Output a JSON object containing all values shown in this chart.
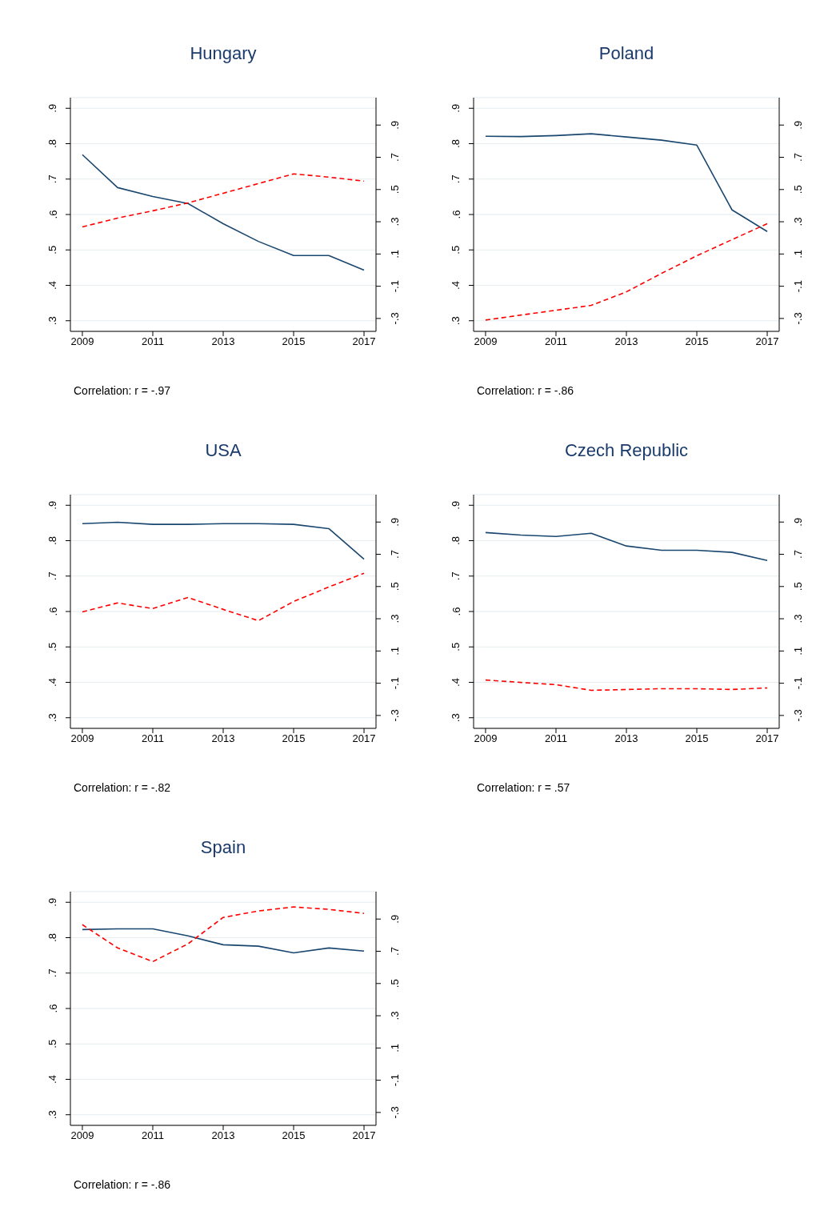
{
  "chart_data": [
    {
      "type": "line",
      "title": "Hungary",
      "x": [
        2009,
        2010,
        2011,
        2012,
        2013,
        2014,
        2015,
        2016,
        2017
      ],
      "xlim": [
        2008.66,
        2017.34
      ],
      "xticks": [
        2009,
        2011,
        2013,
        2015,
        2017
      ],
      "ylim": [
        0.27,
        0.93
      ],
      "yticks": [
        {
          "value": 0.3,
          "label": ".3"
        },
        {
          "value": 0.4,
          "label": ".4"
        },
        {
          "value": 0.5,
          "label": ".5"
        },
        {
          "value": 0.6,
          "label": ".6"
        },
        {
          "value": 0.7,
          "label": ".7"
        },
        {
          "value": 0.8,
          "label": ".8"
        },
        {
          "value": 0.9,
          "label": ".9"
        }
      ],
      "y2lim": [
        -0.38,
        1.07
      ],
      "y2ticks": [
        {
          "value": -0.3,
          "label": "-.3"
        },
        {
          "value": -0.1,
          "label": "-.1"
        },
        {
          "value": 0.1,
          "label": ".1"
        },
        {
          "value": 0.3,
          "label": ".3"
        },
        {
          "value": 0.5,
          "label": ".5"
        },
        {
          "value": 0.7,
          "label": ".7"
        },
        {
          "value": 0.9,
          "label": ".9"
        }
      ],
      "grid": "y",
      "marker": "none",
      "annotations": [
        "Correlation: r = -.97"
      ],
      "series": [
        {
          "color": "#1a476f",
          "line_style": "solid",
          "values": [
            0.769,
            0.676,
            0.651,
            0.631,
            0.574,
            0.524,
            0.484,
            0.484,
            0.443
          ]
        },
        {
          "color": "#ff0000",
          "line_style": "dashed",
          "axis": "y2",
          "values": [
            0.268,
            0.323,
            0.368,
            0.417,
            0.477,
            0.537,
            0.597,
            0.577,
            0.552
          ]
        }
      ]
    },
    {
      "type": "line",
      "title": "Poland",
      "x": [
        2009,
        2010,
        2011,
        2012,
        2013,
        2014,
        2015,
        2016,
        2017
      ],
      "xlim": [
        2008.66,
        2017.34
      ],
      "xticks": [
        2009,
        2011,
        2013,
        2015,
        2017
      ],
      "ylim": [
        0.27,
        0.93
      ],
      "yticks": [
        {
          "value": 0.3,
          "label": ".3"
        },
        {
          "value": 0.4,
          "label": ".4"
        },
        {
          "value": 0.5,
          "label": ".5"
        },
        {
          "value": 0.6,
          "label": ".6"
        },
        {
          "value": 0.7,
          "label": ".7"
        },
        {
          "value": 0.8,
          "label": ".8"
        },
        {
          "value": 0.9,
          "label": ".9"
        }
      ],
      "y2lim": [
        -0.38,
        1.07
      ],
      "y2ticks": [
        {
          "value": -0.3,
          "label": "-.3"
        },
        {
          "value": -0.1,
          "label": "-.1"
        },
        {
          "value": 0.1,
          "label": ".1"
        },
        {
          "value": 0.3,
          "label": ".3"
        },
        {
          "value": 0.5,
          "label": ".5"
        },
        {
          "value": 0.7,
          "label": ".7"
        },
        {
          "value": 0.9,
          "label": ".9"
        }
      ],
      "grid": "y",
      "marker": "none",
      "annotations": [
        "Correlation: r = -.86"
      ],
      "series": [
        {
          "color": "#1a476f",
          "line_style": "solid",
          "values": [
            0.821,
            0.82,
            0.823,
            0.828,
            0.819,
            0.81,
            0.796,
            0.613,
            0.552
          ]
        },
        {
          "color": "#ff0000",
          "line_style": "dashed",
          "axis": "y2",
          "values": [
            -0.31,
            -0.279,
            -0.249,
            -0.219,
            -0.135,
            -0.02,
            0.089,
            0.189,
            0.288
          ]
        }
      ]
    },
    {
      "type": "line",
      "title": "USA",
      "x": [
        2009,
        2010,
        2011,
        2012,
        2013,
        2014,
        2015,
        2016,
        2017
      ],
      "xlim": [
        2008.66,
        2017.34
      ],
      "xticks": [
        2009,
        2011,
        2013,
        2015,
        2017
      ],
      "ylim": [
        0.27,
        0.93
      ],
      "yticks": [
        {
          "value": 0.3,
          "label": ".3"
        },
        {
          "value": 0.4,
          "label": ".4"
        },
        {
          "value": 0.5,
          "label": ".5"
        },
        {
          "value": 0.6,
          "label": ".6"
        },
        {
          "value": 0.7,
          "label": ".7"
        },
        {
          "value": 0.8,
          "label": ".8"
        },
        {
          "value": 0.9,
          "label": ".9"
        }
      ],
      "y2lim": [
        -0.38,
        1.07
      ],
      "y2ticks": [
        {
          "value": -0.3,
          "label": "-.3"
        },
        {
          "value": -0.1,
          "label": "-.1"
        },
        {
          "value": 0.1,
          "label": ".1"
        },
        {
          "value": 0.3,
          "label": ".3"
        },
        {
          "value": 0.5,
          "label": ".5"
        },
        {
          "value": 0.7,
          "label": ".7"
        },
        {
          "value": 0.9,
          "label": ".9"
        }
      ],
      "grid": "y",
      "marker": "none",
      "annotations": [
        "Correlation: r = -.82"
      ],
      "series": [
        {
          "color": "#1a476f",
          "line_style": "solid",
          "values": [
            0.848,
            0.852,
            0.846,
            0.846,
            0.848,
            0.848,
            0.846,
            0.834,
            0.748
          ]
        },
        {
          "color": "#ff0000",
          "line_style": "dashed",
          "axis": "y2",
          "values": [
            0.343,
            0.398,
            0.363,
            0.432,
            0.358,
            0.288,
            0.407,
            0.497,
            0.582
          ]
        }
      ]
    },
    {
      "type": "line",
      "title": "Czech Republic",
      "x": [
        2009,
        2010,
        2011,
        2012,
        2013,
        2014,
        2015,
        2016,
        2017
      ],
      "xlim": [
        2008.66,
        2017.34
      ],
      "xticks": [
        2009,
        2011,
        2013,
        2015,
        2017
      ],
      "ylim": [
        0.27,
        0.93
      ],
      "yticks": [
        {
          "value": 0.3,
          "label": ".3"
        },
        {
          "value": 0.4,
          "label": ".4"
        },
        {
          "value": 0.5,
          "label": ".5"
        },
        {
          "value": 0.6,
          "label": ".6"
        },
        {
          "value": 0.7,
          "label": ".7"
        },
        {
          "value": 0.8,
          "label": ".8"
        },
        {
          "value": 0.9,
          "label": ".9"
        }
      ],
      "y2lim": [
        -0.38,
        1.07
      ],
      "y2ticks": [
        {
          "value": -0.3,
          "label": "-.3"
        },
        {
          "value": -0.1,
          "label": "-.1"
        },
        {
          "value": 0.1,
          "label": ".1"
        },
        {
          "value": 0.3,
          "label": ".3"
        },
        {
          "value": 0.5,
          "label": ".5"
        },
        {
          "value": 0.7,
          "label": ".7"
        },
        {
          "value": 0.9,
          "label": ".9"
        }
      ],
      "grid": "y",
      "marker": "none",
      "annotations": [
        "Correlation: r = .57"
      ],
      "series": [
        {
          "color": "#1a476f",
          "line_style": "solid",
          "values": [
            0.823,
            0.816,
            0.812,
            0.821,
            0.785,
            0.773,
            0.773,
            0.767,
            0.744
          ]
        },
        {
          "color": "#ff0000",
          "line_style": "dashed",
          "axis": "y2",
          "values": [
            -0.08,
            -0.095,
            -0.109,
            -0.144,
            -0.139,
            -0.134,
            -0.134,
            -0.139,
            -0.129
          ]
        }
      ]
    },
    {
      "type": "line",
      "title": "Spain",
      "x": [
        2009,
        2010,
        2011,
        2012,
        2013,
        2014,
        2015,
        2016,
        2017
      ],
      "xlim": [
        2008.66,
        2017.34
      ],
      "xticks": [
        2009,
        2011,
        2013,
        2015,
        2017
      ],
      "ylim": [
        0.27,
        0.93
      ],
      "yticks": [
        {
          "value": 0.3,
          "label": ".3"
        },
        {
          "value": 0.4,
          "label": ".4"
        },
        {
          "value": 0.5,
          "label": ".5"
        },
        {
          "value": 0.6,
          "label": ".6"
        },
        {
          "value": 0.7,
          "label": ".7"
        },
        {
          "value": 0.8,
          "label": ".8"
        },
        {
          "value": 0.9,
          "label": ".9"
        }
      ],
      "y2lim": [
        -0.38,
        1.07
      ],
      "y2ticks": [
        {
          "value": -0.3,
          "label": "-.3"
        },
        {
          "value": -0.1,
          "label": "-.1"
        },
        {
          "value": 0.1,
          "label": ".1"
        },
        {
          "value": 0.3,
          "label": ".3"
        },
        {
          "value": 0.5,
          "label": ".5"
        },
        {
          "value": 0.7,
          "label": ".7"
        },
        {
          "value": 0.9,
          "label": ".9"
        }
      ],
      "grid": "y",
      "marker": "none",
      "annotations": [
        "Correlation: r = -.86"
      ],
      "series": [
        {
          "color": "#1a476f",
          "line_style": "solid",
          "values": [
            0.823,
            0.825,
            0.825,
            0.805,
            0.78,
            0.776,
            0.757,
            0.771,
            0.762
          ]
        },
        {
          "color": "#ff0000",
          "line_style": "dashed",
          "axis": "y2",
          "values": [
            0.865,
            0.721,
            0.636,
            0.746,
            0.91,
            0.95,
            0.975,
            0.96,
            0.935
          ]
        }
      ]
    }
  ]
}
